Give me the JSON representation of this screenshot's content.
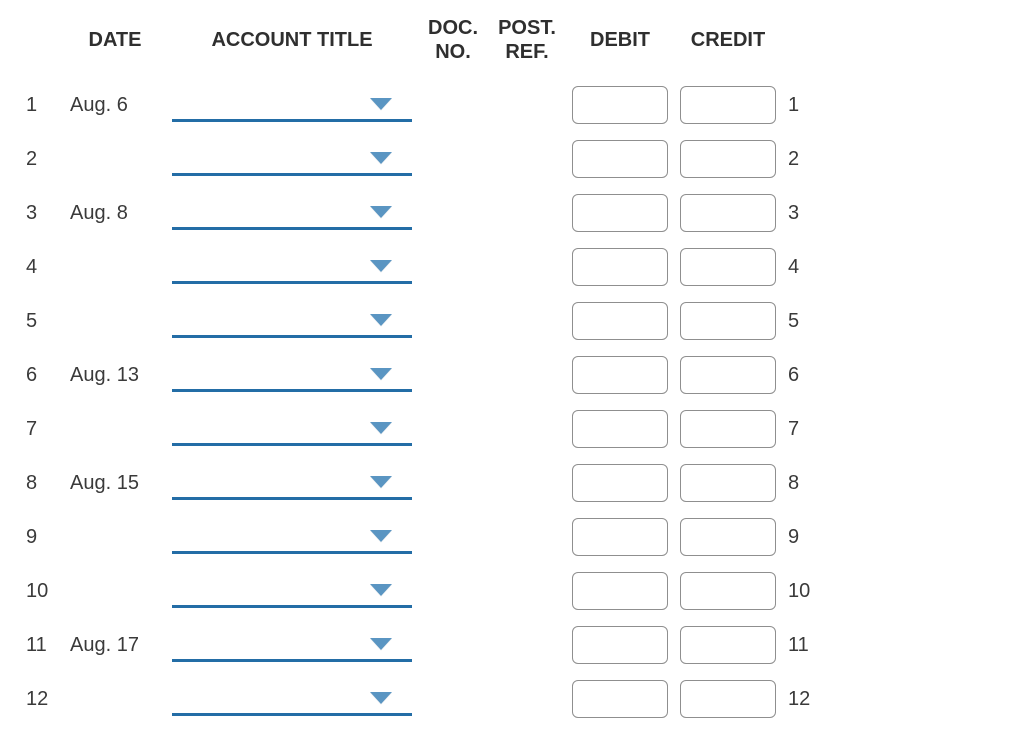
{
  "headers": {
    "date": "DATE",
    "account_title": "ACCOUNT TITLE",
    "doc_no": "DOC. NO.",
    "post_ref": "POST. REF.",
    "debit": "DEBIT",
    "credit": "CREDIT"
  },
  "colors": {
    "underline": "#236da6",
    "caret": "#5a95c2",
    "input_border": "#8f8f8f",
    "text": "#3a3a3a",
    "background": "#ffffff"
  },
  "rows": [
    {
      "n": "1",
      "date": "Aug. 6",
      "account": "",
      "doc": "",
      "post": "",
      "debit": "",
      "credit": ""
    },
    {
      "n": "2",
      "date": "",
      "account": "",
      "doc": "",
      "post": "",
      "debit": "",
      "credit": ""
    },
    {
      "n": "3",
      "date": "Aug. 8",
      "account": "",
      "doc": "",
      "post": "",
      "debit": "",
      "credit": ""
    },
    {
      "n": "4",
      "date": "",
      "account": "",
      "doc": "",
      "post": "",
      "debit": "",
      "credit": ""
    },
    {
      "n": "5",
      "date": "",
      "account": "",
      "doc": "",
      "post": "",
      "debit": "",
      "credit": ""
    },
    {
      "n": "6",
      "date": "Aug. 13",
      "account": "",
      "doc": "",
      "post": "",
      "debit": "",
      "credit": ""
    },
    {
      "n": "7",
      "date": "",
      "account": "",
      "doc": "",
      "post": "",
      "debit": "",
      "credit": ""
    },
    {
      "n": "8",
      "date": "Aug. 15",
      "account": "",
      "doc": "",
      "post": "",
      "debit": "",
      "credit": ""
    },
    {
      "n": "9",
      "date": "",
      "account": "",
      "doc": "",
      "post": "",
      "debit": "",
      "credit": ""
    },
    {
      "n": "10",
      "date": "",
      "account": "",
      "doc": "",
      "post": "",
      "debit": "",
      "credit": ""
    },
    {
      "n": "11",
      "date": "Aug. 17",
      "account": "",
      "doc": "",
      "post": "",
      "debit": "",
      "credit": ""
    },
    {
      "n": "12",
      "date": "",
      "account": "",
      "doc": "",
      "post": "",
      "debit": "",
      "credit": ""
    }
  ]
}
